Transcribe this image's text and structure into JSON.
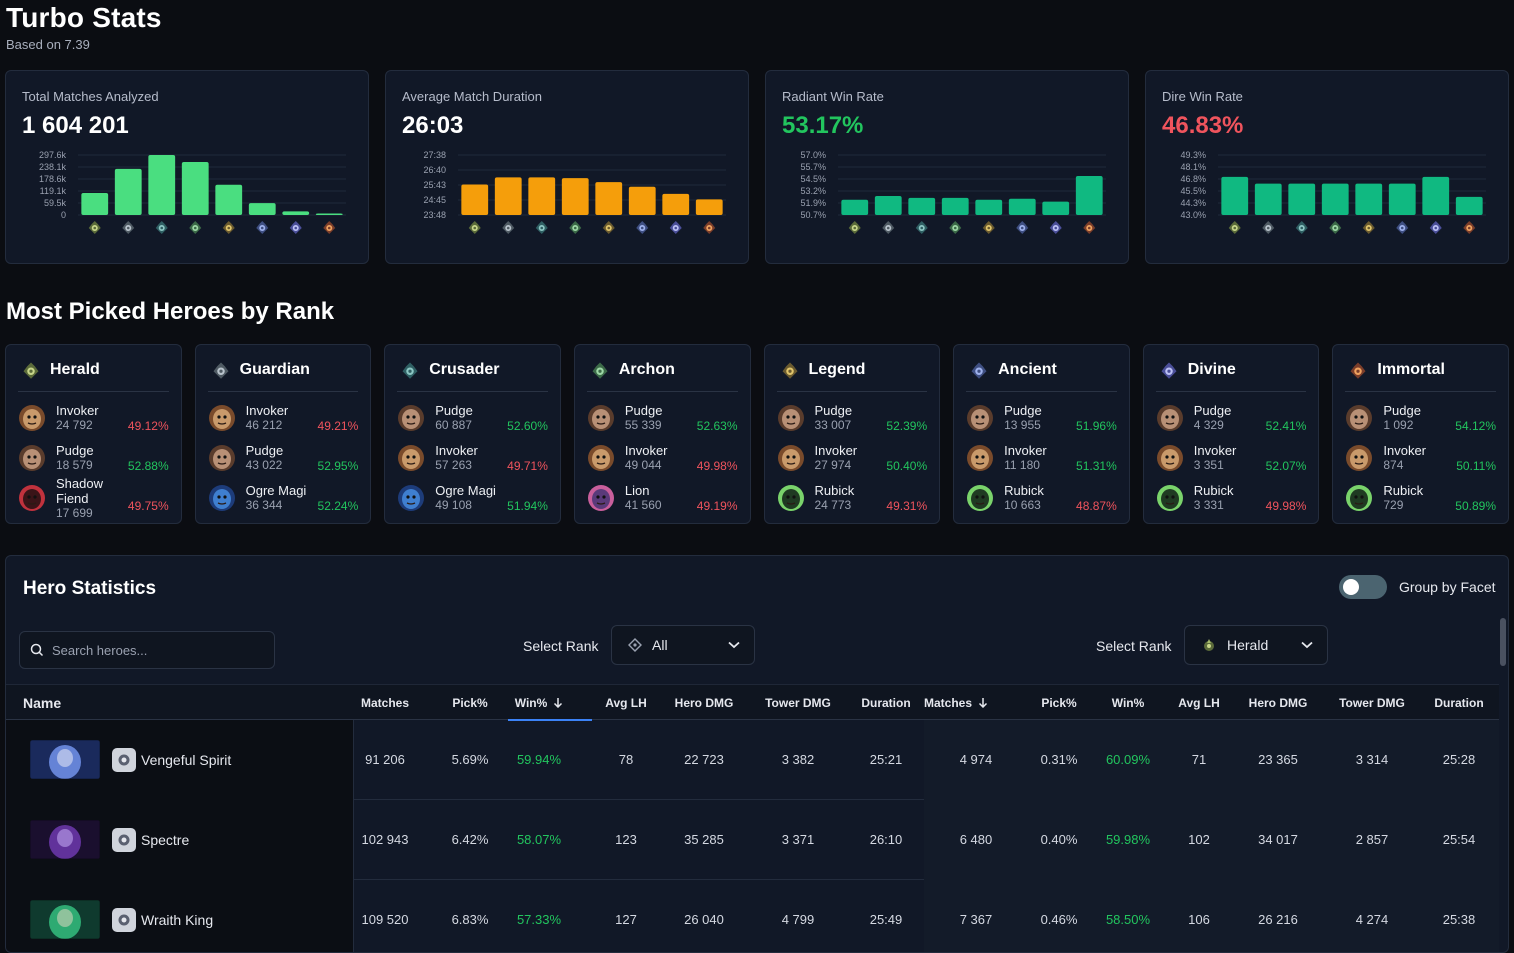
{
  "header": {
    "title": "Turbo Stats",
    "subtitle": "Based on 7.39"
  },
  "stat_cards": [
    {
      "label": "Total Matches Analyzed",
      "value": "1 604 201"
    },
    {
      "label": "Average Match Duration",
      "value": "26:03"
    },
    {
      "label": "Radiant Win Rate",
      "value": "53.17%"
    },
    {
      "label": "Dire Win Rate",
      "value": "46.83%"
    }
  ],
  "colors": {
    "green": "#22c55e",
    "red": "#f0545d",
    "orange": "#f59e0b",
    "teal": "#10b981",
    "lightgreen": "#4ade80",
    "accent": "#3b82f6"
  },
  "chart_data": [
    {
      "type": "bar",
      "categories": [
        "Herald",
        "Guardian",
        "Crusader",
        "Archon",
        "Legend",
        "Ancient",
        "Divine",
        "Immortal"
      ],
      "ticks": [
        "297.6k",
        "238.1k",
        "178.6k",
        "119.1k",
        "59.5k",
        "0"
      ],
      "ylim": [
        0,
        297600
      ],
      "values": [
        109000,
        229000,
        297600,
        263000,
        150000,
        59000,
        18000,
        4000
      ]
    },
    {
      "type": "bar",
      "categories": [
        "Herald",
        "Guardian",
        "Crusader",
        "Archon",
        "Legend",
        "Ancient",
        "Divine",
        "Immortal"
      ],
      "ticks": [
        "27:38",
        "26:40",
        "25:43",
        "24:45",
        "23:48"
      ],
      "ylim": [
        23.8,
        27.63
      ],
      "values": [
        25.75,
        26.2,
        26.2,
        26.15,
        25.9,
        25.6,
        25.15,
        24.8
      ]
    },
    {
      "type": "bar",
      "categories": [
        "Herald",
        "Guardian",
        "Crusader",
        "Archon",
        "Legend",
        "Ancient",
        "Divine",
        "Immortal"
      ],
      "ticks": [
        "57.0%",
        "55.7%",
        "54.5%",
        "53.2%",
        "51.9%",
        "50.7%"
      ],
      "ylim": [
        50.7,
        57.0
      ],
      "values": [
        52.3,
        52.7,
        52.5,
        52.5,
        52.3,
        52.4,
        52.1,
        54.8
      ]
    },
    {
      "type": "bar",
      "categories": [
        "Herald",
        "Guardian",
        "Crusader",
        "Archon",
        "Legend",
        "Ancient",
        "Divine",
        "Immortal"
      ],
      "ticks": [
        "49.3%",
        "48.1%",
        "46.8%",
        "45.5%",
        "44.3%",
        "43.0%"
      ],
      "ylim": [
        43.0,
        49.3
      ],
      "values": [
        47.0,
        46.3,
        46.3,
        46.3,
        46.3,
        46.3,
        47.0,
        44.9
      ]
    }
  ],
  "rank_section": {
    "title": "Most Picked Heroes by Rank",
    "ranks": [
      {
        "name": "Herald",
        "heroes": [
          {
            "name": "Invoker",
            "count": "24 792",
            "wr": "49.12%"
          },
          {
            "name": "Pudge",
            "count": "18 579",
            "wr": "52.88%"
          },
          {
            "name": "Shadow Fiend",
            "count": "17 699",
            "wr": "49.75%"
          }
        ]
      },
      {
        "name": "Guardian",
        "heroes": [
          {
            "name": "Invoker",
            "count": "46 212",
            "wr": "49.21%"
          },
          {
            "name": "Pudge",
            "count": "43 022",
            "wr": "52.95%"
          },
          {
            "name": "Ogre Magi",
            "count": "36 344",
            "wr": "52.24%"
          }
        ]
      },
      {
        "name": "Crusader",
        "heroes": [
          {
            "name": "Pudge",
            "count": "60 887",
            "wr": "52.60%"
          },
          {
            "name": "Invoker",
            "count": "57 263",
            "wr": "49.71%"
          },
          {
            "name": "Ogre Magi",
            "count": "49 108",
            "wr": "51.94%"
          }
        ]
      },
      {
        "name": "Archon",
        "heroes": [
          {
            "name": "Pudge",
            "count": "55 339",
            "wr": "52.63%"
          },
          {
            "name": "Invoker",
            "count": "49 044",
            "wr": "49.98%"
          },
          {
            "name": "Lion",
            "count": "41 560",
            "wr": "49.19%"
          }
        ]
      },
      {
        "name": "Legend",
        "heroes": [
          {
            "name": "Pudge",
            "count": "33 007",
            "wr": "52.39%"
          },
          {
            "name": "Invoker",
            "count": "27 974",
            "wr": "50.40%"
          },
          {
            "name": "Rubick",
            "count": "24 773",
            "wr": "49.31%"
          }
        ]
      },
      {
        "name": "Ancient",
        "heroes": [
          {
            "name": "Pudge",
            "count": "13 955",
            "wr": "51.96%"
          },
          {
            "name": "Invoker",
            "count": "11 180",
            "wr": "51.31%"
          },
          {
            "name": "Rubick",
            "count": "10 663",
            "wr": "48.87%"
          }
        ]
      },
      {
        "name": "Divine",
        "heroes": [
          {
            "name": "Pudge",
            "count": "4 329",
            "wr": "52.41%"
          },
          {
            "name": "Invoker",
            "count": "3 351",
            "wr": "52.07%"
          },
          {
            "name": "Rubick",
            "count": "3 331",
            "wr": "49.98%"
          }
        ]
      },
      {
        "name": "Immortal",
        "heroes": [
          {
            "name": "Pudge",
            "count": "1 092",
            "wr": "54.12%"
          },
          {
            "name": "Invoker",
            "count": "874",
            "wr": "50.11%"
          },
          {
            "name": "Rubick",
            "count": "729",
            "wr": "50.89%"
          }
        ]
      }
    ]
  },
  "hero_table": {
    "title": "Hero Statistics",
    "group_toggle_label": "Group by Facet",
    "group_toggle_on": false,
    "search_placeholder": "Search heroes...",
    "select1": {
      "label": "Select Rank",
      "value": "All"
    },
    "select2": {
      "label": "Select Rank",
      "value": "Herald"
    },
    "columns": {
      "name": "Name",
      "left": [
        "Matches",
        "Pick%",
        "Win%",
        "Avg LH",
        "Hero DMG",
        "Tower DMG",
        "Duration"
      ],
      "right": [
        "Matches",
        "Pick%",
        "Win%",
        "Avg LH",
        "Hero DMG",
        "Tower DMG",
        "Duration"
      ]
    },
    "rows": [
      {
        "name": "Vengeful Spirit",
        "left": [
          "91 206",
          "5.69%",
          "59.94%",
          "78",
          "22 723",
          "3 382",
          "25:21"
        ],
        "right": [
          "4 974",
          "0.31%",
          "60.09%",
          "71",
          "23 365",
          "3 314",
          "25:28"
        ]
      },
      {
        "name": "Spectre",
        "left": [
          "102 943",
          "6.42%",
          "58.07%",
          "123",
          "35 285",
          "3 371",
          "26:10"
        ],
        "right": [
          "6 480",
          "0.40%",
          "59.98%",
          "102",
          "34 017",
          "2 857",
          "25:54"
        ]
      },
      {
        "name": "Wraith King",
        "left": [
          "109 520",
          "6.83%",
          "57.33%",
          "127",
          "26 040",
          "4 799",
          "25:49"
        ],
        "right": [
          "7 367",
          "0.46%",
          "58.50%",
          "106",
          "26 216",
          "4 274",
          "25:38"
        ]
      }
    ]
  }
}
